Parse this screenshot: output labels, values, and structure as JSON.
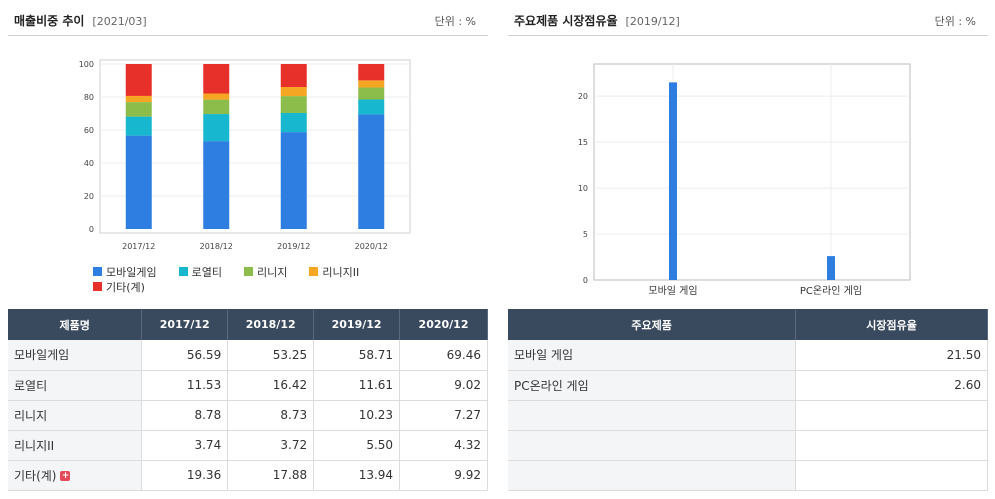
{
  "left_panel": {
    "title": "매출비중 추이",
    "date": "[2021/03]",
    "unit": "단위 : %",
    "table": {
      "headers": [
        "제품명",
        "2017/12",
        "2018/12",
        "2019/12",
        "2020/12"
      ],
      "rows": [
        {
          "label": "모바일게임",
          "values": [
            "56.59",
            "53.25",
            "58.71",
            "69.46"
          ]
        },
        {
          "label": "로열티",
          "values": [
            "11.53",
            "16.42",
            "11.61",
            "9.02"
          ]
        },
        {
          "label": "리니지",
          "values": [
            "8.78",
            "8.73",
            "10.23",
            "7.27"
          ]
        },
        {
          "label": "리니지II",
          "values": [
            "3.74",
            "3.72",
            "5.50",
            "4.32"
          ]
        },
        {
          "label": "기타(계)",
          "values": [
            "19.36",
            "17.88",
            "13.94",
            "9.92"
          ]
        }
      ]
    }
  },
  "right_panel": {
    "title": "주요제품 시장점유율",
    "date": "[2019/12]",
    "unit": "단위 : %",
    "table": {
      "headers": [
        "주요제품",
        "시장점유율"
      ],
      "rows": [
        {
          "label": "모바일 게임",
          "value": "21.50"
        },
        {
          "label": "PC온라인 게임",
          "value": "2.60"
        },
        {
          "label": "",
          "value": ""
        },
        {
          "label": "",
          "value": ""
        },
        {
          "label": "",
          "value": ""
        }
      ]
    }
  },
  "chart_data": [
    {
      "type": "bar",
      "stacked": true,
      "categories": [
        "2017/12",
        "2018/12",
        "2019/12",
        "2020/12"
      ],
      "series": [
        {
          "name": "모바일게임",
          "color": "#2e7de1",
          "values": [
            56.59,
            53.25,
            58.71,
            69.46
          ]
        },
        {
          "name": "로열티",
          "color": "#17b8cf",
          "values": [
            11.53,
            16.42,
            11.61,
            9.02
          ]
        },
        {
          "name": "리니지",
          "color": "#8cbd4a",
          "values": [
            8.78,
            8.73,
            10.23,
            7.27
          ]
        },
        {
          "name": "리니지II",
          "color": "#f5a623",
          "values": [
            3.74,
            3.72,
            5.5,
            4.32
          ]
        },
        {
          "name": "기타(계)",
          "color": "#e8302a",
          "values": [
            19.36,
            17.88,
            13.94,
            9.92
          ]
        }
      ],
      "ylim": [
        0,
        100
      ],
      "yticks": [
        0,
        20,
        40,
        60,
        80,
        100
      ],
      "grid": true,
      "legend": "bottom"
    },
    {
      "type": "bar",
      "categories": [
        "모바일 게임",
        "PC온라인 게임"
      ],
      "series": [
        {
          "color": "#2e7de1",
          "values": [
            21.5,
            2.6
          ]
        }
      ],
      "ylim": [
        0,
        23.5
      ],
      "yticks": [
        0,
        5,
        10,
        15,
        20
      ],
      "grid": true
    }
  ]
}
